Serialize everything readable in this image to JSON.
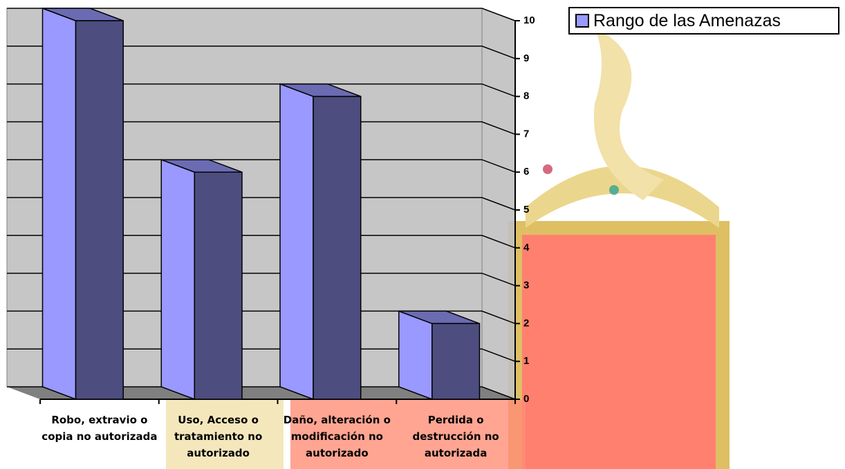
{
  "chart_data": {
    "type": "bar3d",
    "categories": [
      "Robo, extravio o copia no autorizada",
      "Uso, Acceso o tratamiento no autorizado",
      "Daño, alteración o modificación no autorizado",
      "Perdida o destrucción no autorizada"
    ],
    "series": [
      {
        "name": "Rango de las Amenazas",
        "color": "#9999ff",
        "values": [
          10,
          6,
          8,
          2
        ]
      }
    ],
    "ylim": [
      0,
      10
    ],
    "yticks": [
      0,
      1,
      2,
      3,
      4,
      5,
      6,
      7,
      8,
      9,
      10
    ],
    "grid": true,
    "legend": "top-right"
  }
}
